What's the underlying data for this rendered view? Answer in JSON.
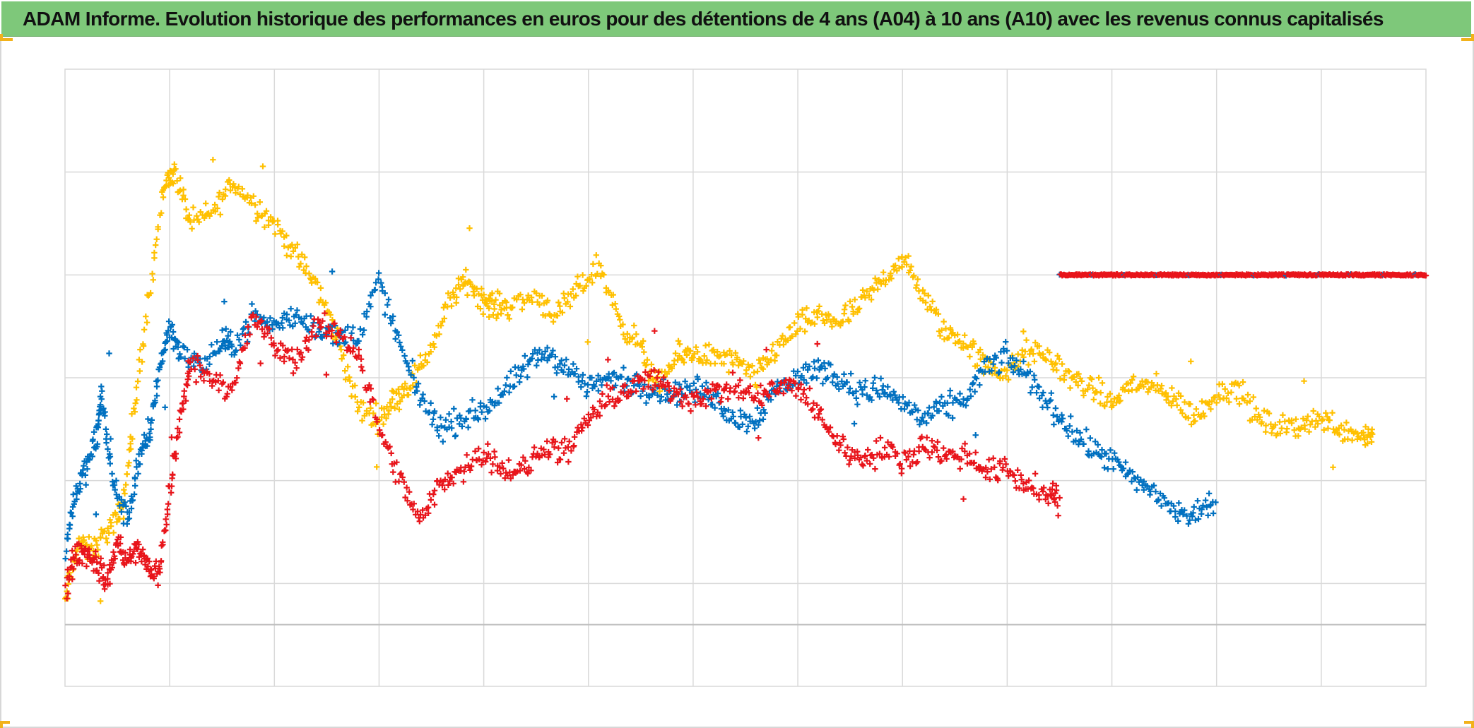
{
  "title": "ADAM Informe. Evolution historique des performances en euros pour des détentions de 4 ans (A04) à 10 ans (A10) avec les revenus connus capitalisés",
  "colors": {
    "title_bar": "#7ec87a",
    "series_yellow": "#ffc000",
    "series_blue": "#0070c0",
    "series_red": "#e8151b",
    "grid": "#d9d9d9",
    "corner_accent": "#f2b21b"
  },
  "chart_data": {
    "type": "scatter",
    "marker": "plus",
    "xlabel": "",
    "ylabel": "",
    "xlim": [
      0,
      13
    ],
    "ylim": [
      0,
      6
    ],
    "grid": true,
    "legend": "none",
    "x_gridlines": [
      1,
      2,
      3,
      4,
      5,
      6,
      7,
      8,
      9,
      10,
      11,
      12
    ],
    "y_gridlines": [
      0.6,
      1.0,
      2.0,
      3.0,
      4.0,
      5.0
    ],
    "series": [
      {
        "color_key": "series_yellow",
        "x": [
          0.0,
          0.12,
          0.25,
          0.4,
          0.55,
          0.65,
          0.8,
          0.95,
          1.05,
          1.2,
          1.4,
          1.6,
          1.8,
          2.0,
          2.2,
          2.4,
          2.6,
          2.8,
          3.0,
          3.15,
          3.3,
          3.5,
          3.7,
          3.85,
          4.0,
          4.1,
          4.25,
          4.5,
          4.7,
          4.9,
          5.1,
          5.3,
          5.5,
          5.65,
          5.85,
          6.0,
          6.2,
          6.4,
          6.6,
          6.8,
          7.0,
          7.2,
          7.4,
          7.6,
          7.8,
          8.0,
          8.2,
          8.4,
          8.6,
          8.8,
          9.0,
          9.2,
          9.4,
          9.6,
          9.8,
          10.0,
          10.2,
          10.4,
          10.6,
          10.8,
          11.0,
          11.2,
          11.4,
          11.6,
          11.8,
          12.0,
          12.2,
          12.4,
          12.5
        ],
        "y": [
          0.8,
          1.4,
          1.3,
          1.5,
          1.7,
          2.6,
          3.8,
          4.9,
          5.0,
          4.5,
          4.6,
          4.9,
          4.7,
          4.5,
          4.2,
          3.9,
          3.4,
          2.7,
          2.6,
          2.8,
          2.95,
          3.3,
          3.8,
          3.95,
          3.75,
          3.7,
          3.7,
          3.8,
          3.6,
          3.85,
          4.1,
          3.55,
          3.3,
          2.9,
          3.2,
          3.25,
          3.2,
          3.15,
          3.0,
          3.3,
          3.5,
          3.6,
          3.55,
          3.7,
          3.95,
          4.15,
          3.8,
          3.45,
          3.35,
          3.1,
          3.05,
          3.25,
          3.2,
          3.0,
          2.9,
          2.75,
          2.95,
          2.9,
          2.8,
          2.6,
          2.85,
          2.9,
          2.6,
          2.5,
          2.55,
          2.6,
          2.5,
          2.45,
          2.45
        ]
      },
      {
        "color_key": "series_blue",
        "x": [
          0.0,
          0.1,
          0.2,
          0.3,
          0.35,
          0.45,
          0.6,
          0.7,
          0.8,
          0.9,
          1.0,
          1.1,
          1.3,
          1.5,
          1.6,
          1.8,
          2.0,
          2.2,
          2.4,
          2.6,
          2.8,
          3.0,
          3.2,
          3.4,
          3.6,
          3.8,
          4.0,
          4.2,
          4.4,
          4.6,
          4.8,
          5.0,
          5.2,
          5.4,
          5.6,
          5.8,
          6.0,
          6.2,
          6.4,
          6.6,
          6.8,
          7.0,
          7.2,
          7.4,
          7.6,
          7.8,
          8.0,
          8.2,
          8.4,
          8.6,
          8.8,
          9.0,
          9.2,
          9.4,
          9.6,
          9.8,
          10.0,
          10.2,
          10.4,
          10.6,
          10.8,
          11.0
        ],
        "y": [
          1.3,
          1.9,
          2.1,
          2.4,
          2.85,
          2.0,
          1.6,
          2.2,
          2.4,
          3.1,
          3.5,
          3.25,
          3.1,
          3.35,
          3.3,
          3.6,
          3.5,
          3.6,
          3.5,
          3.4,
          3.4,
          3.95,
          3.3,
          2.8,
          2.5,
          2.6,
          2.7,
          2.85,
          3.1,
          3.25,
          3.1,
          2.9,
          3.0,
          2.95,
          2.9,
          2.85,
          2.9,
          2.8,
          2.6,
          2.6,
          2.9,
          3.0,
          3.1,
          3.0,
          2.85,
          2.9,
          2.75,
          2.6,
          2.7,
          2.8,
          3.1,
          3.2,
          3.0,
          2.75,
          2.5,
          2.3,
          2.2,
          2.0,
          1.9,
          1.7,
          1.65,
          1.85
        ]
      },
      {
        "color_key": "series_red",
        "x": [
          0.0,
          0.1,
          0.2,
          0.3,
          0.4,
          0.5,
          0.6,
          0.7,
          0.8,
          0.9,
          1.0,
          1.1,
          1.2,
          1.4,
          1.6,
          1.8,
          2.0,
          2.2,
          2.4,
          2.6,
          2.8,
          3.0,
          3.2,
          3.4,
          3.6,
          3.8,
          4.0,
          4.2,
          4.4,
          4.6,
          4.8,
          5.0,
          5.2,
          5.4,
          5.6,
          5.8,
          6.0,
          6.2,
          6.4,
          6.6,
          6.8,
          7.0,
          7.2,
          7.4,
          7.6,
          7.8,
          8.0,
          8.2,
          8.4,
          8.6,
          8.8,
          9.0,
          9.2,
          9.4,
          9.5
        ],
        "y": [
          0.9,
          1.3,
          1.3,
          1.2,
          1.0,
          1.4,
          1.2,
          1.35,
          1.15,
          1.1,
          1.9,
          2.6,
          3.15,
          3.0,
          2.9,
          3.6,
          3.3,
          3.15,
          3.5,
          3.45,
          3.25,
          2.5,
          2.0,
          1.6,
          2.0,
          2.1,
          2.3,
          2.1,
          2.1,
          2.35,
          2.25,
          2.6,
          2.8,
          2.9,
          3.0,
          2.85,
          2.8,
          2.85,
          2.9,
          2.8,
          2.9,
          2.9,
          2.65,
          2.35,
          2.2,
          2.3,
          2.2,
          2.35,
          2.25,
          2.25,
          2.1,
          2.1,
          1.95,
          1.85,
          1.8
        ]
      },
      {
        "color_key": "series_red",
        "x": [
          9.5,
          13.0
        ],
        "y": [
          4.0,
          4.0
        ],
        "style": "dense_flat"
      }
    ]
  }
}
